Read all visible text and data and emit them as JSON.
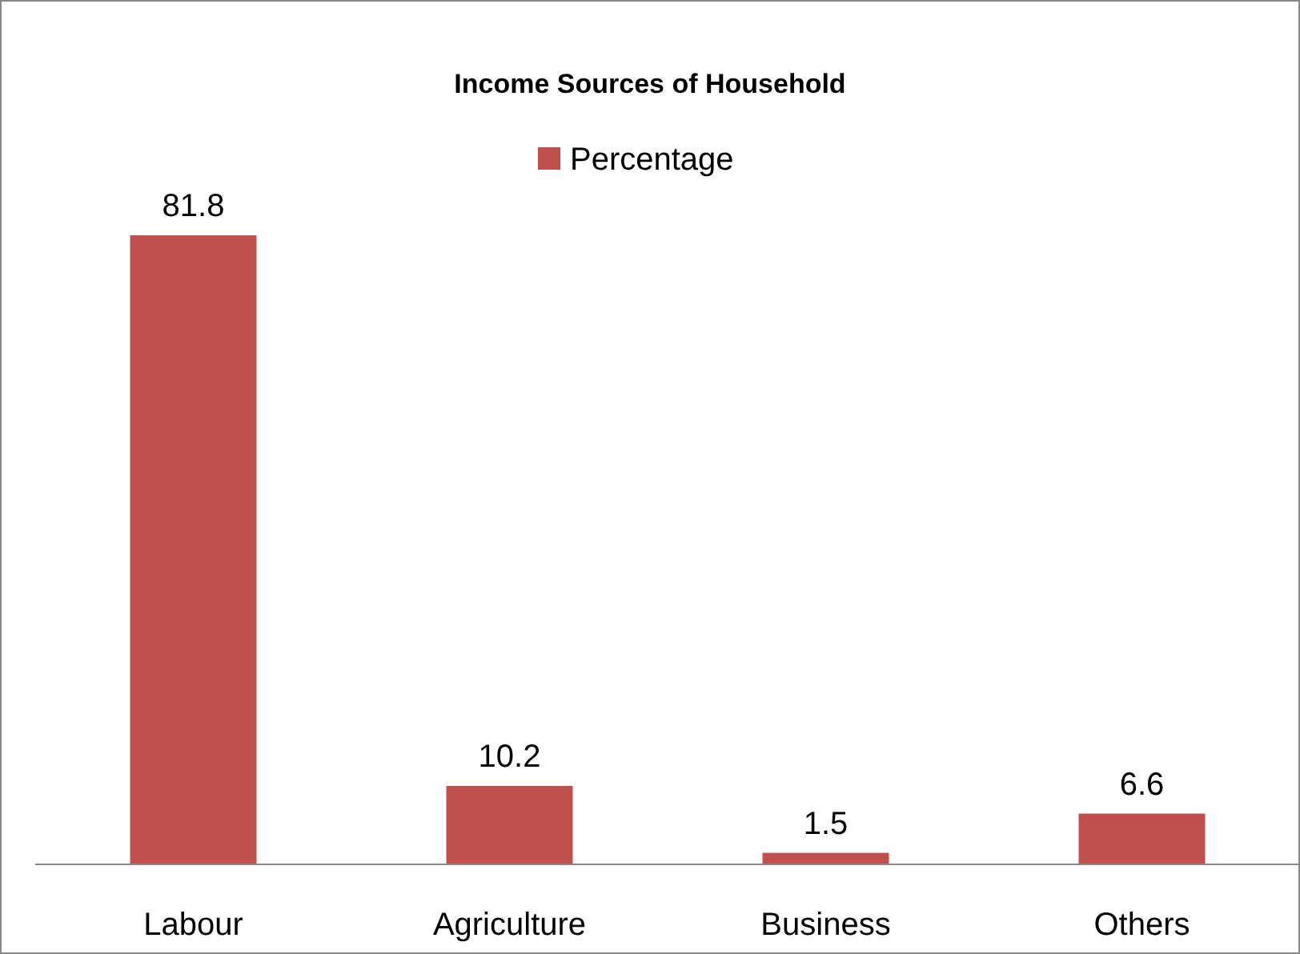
{
  "chart_data": {
    "type": "bar",
    "title": "Income Sources of Household",
    "categories": [
      "Labour",
      "Agriculture",
      "Business",
      "Others"
    ],
    "series": [
      {
        "name": "Percentage",
        "color": "#c0504d",
        "values": [
          81.8,
          10.2,
          1.5,
          6.6
        ]
      }
    ],
    "data_labels": true,
    "legend": "top"
  }
}
